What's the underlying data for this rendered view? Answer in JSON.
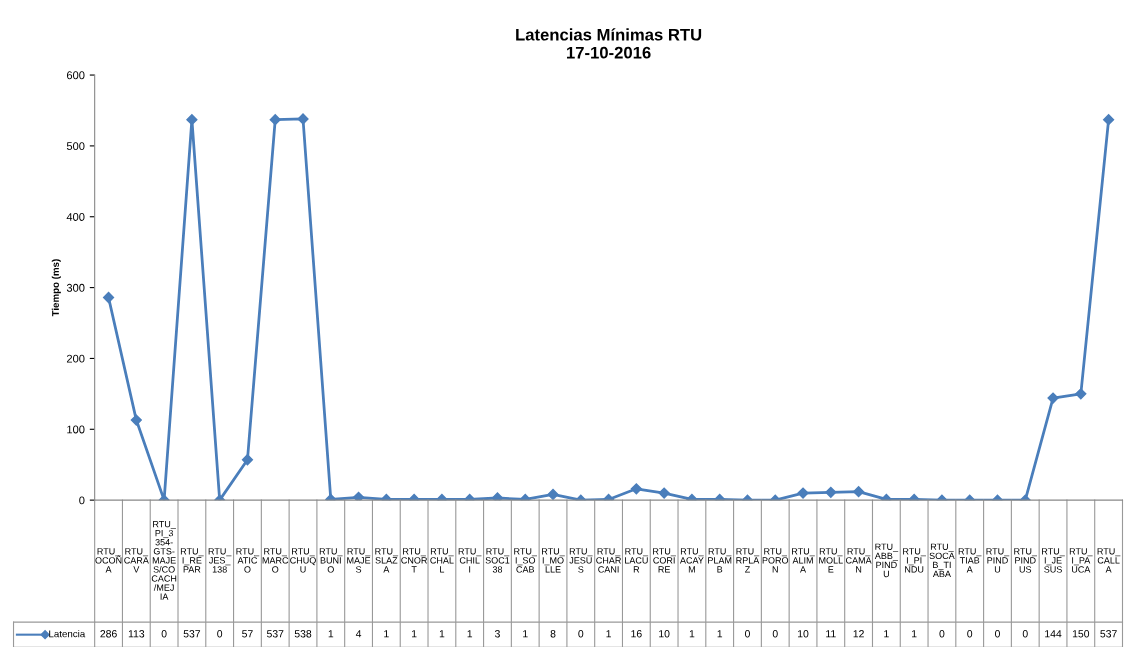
{
  "chart_data": {
    "type": "line",
    "title": "Latencias Mínimas RTU\n17-10-2016",
    "ylabel": "Tiempo (ms)",
    "categories": [
      "RTU_OCOÑA",
      "RTU_CARAV",
      "RTU_PI_3354-GTS-MAJES/COCACH/MEJIA",
      "RTU_I_REPAR",
      "RTU_JES_138",
      "RTU_ATICO",
      "RTU_MARCO",
      "RTU_CHUQU",
      "RTU_BUNIO",
      "RTU_MAJES",
      "RTU_SLAZA",
      "RTU_CNORT",
      "RTU_CHALL",
      "RTU_CHILI",
      "RTU_SOC138",
      "RTU_I_SOCAB",
      "RTU_I_MOLLE",
      "RTU_JESUS",
      "RTU_CHARCANI",
      "RTU_LACUR",
      "RTU_CORIRE",
      "RTU_ACAYM",
      "RTU_PLAMB",
      "RTU_RPLAZ",
      "RTU_PORON",
      "RTU_ALIMA",
      "RTU_MOLLE",
      "RTU_CAMAN",
      "RTU_ABB_PINDU",
      "RTU_I_PINDU",
      "RTU_SOCAB_TIABA",
      "RTU_TIABA",
      "RTU_PINDU",
      "RTU_PINDUS",
      "RTU_I_JESUS",
      "RTU_I_PAUCA",
      "RTU_CALLA"
    ],
    "series": [
      {
        "name": "Latencia",
        "color": "#4a7ebb",
        "values": [
          286,
          113,
          0,
          537,
          0,
          57,
          537,
          538,
          1,
          4,
          1,
          1,
          1,
          1,
          3,
          1,
          8,
          0,
          1,
          16,
          10,
          1,
          1,
          0,
          0,
          10,
          11,
          12,
          1,
          1,
          0,
          0,
          0,
          0,
          144,
          150,
          537
        ]
      }
    ],
    "ylim": [
      0,
      600
    ],
    "yticks": [
      0,
      100,
      200,
      300,
      400,
      500,
      600
    ],
    "marker": "diamond",
    "line_style": "solid",
    "grid": false,
    "legend": "bottom",
    "data_labels": true
  }
}
